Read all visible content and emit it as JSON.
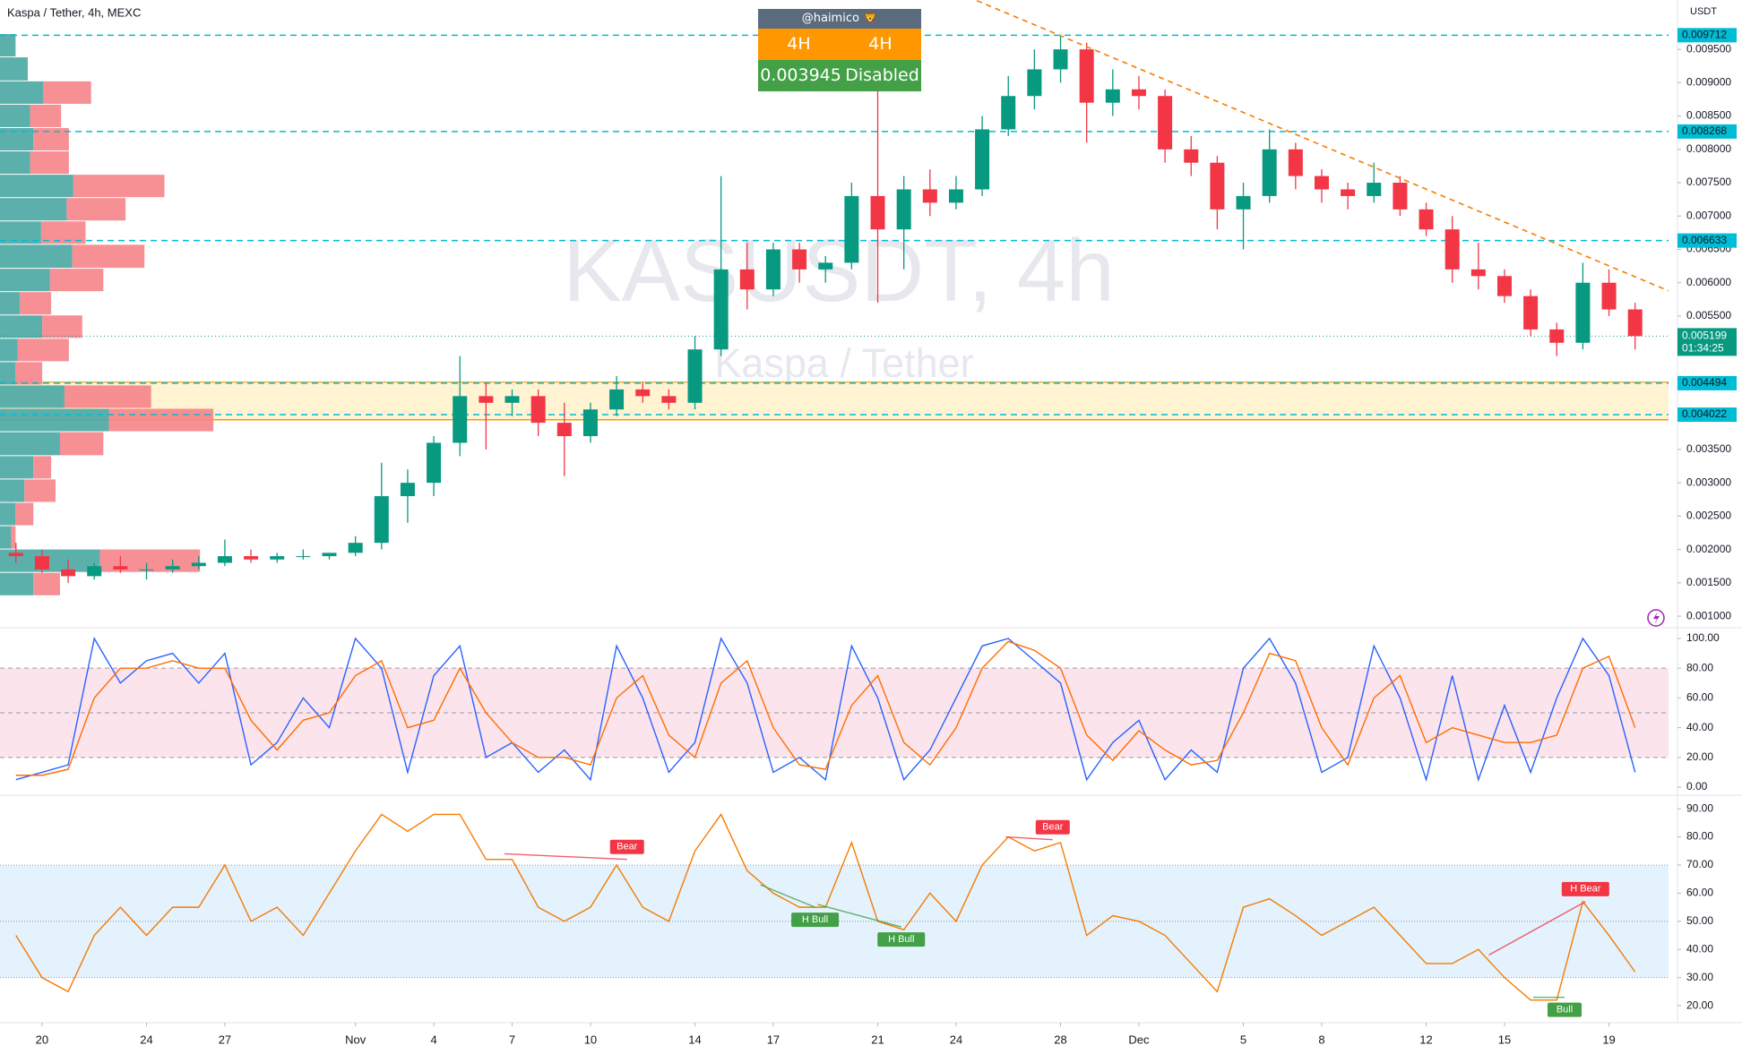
{
  "chart_data": [
    {
      "type": "candlestick",
      "title": "Kaspa / Tether, 4h, MEXC",
      "watermark": "KASUSDT, 4h",
      "watermark_subtitle": "Kaspa / Tether",
      "y_label": "USDT",
      "x": [
        -1,
        0,
        1,
        2,
        3,
        4,
        5,
        6,
        7,
        8,
        9,
        10,
        11,
        12,
        13,
        14,
        15,
        16,
        17,
        18,
        19,
        20,
        21,
        22,
        23,
        24,
        25,
        26,
        27,
        28,
        29,
        30,
        31,
        32,
        33,
        34,
        35,
        36,
        37,
        38,
        39,
        40,
        41,
        42,
        43,
        44,
        45,
        46,
        47,
        48,
        49,
        50,
        51,
        52,
        53,
        54,
        55,
        56,
        57,
        58,
        59,
        60,
        61
      ],
      "open": [
        0.00195,
        0.0019,
        0.0017,
        0.0016,
        0.00175,
        0.0017,
        0.0017,
        0.00175,
        0.0018,
        0.0019,
        0.00185,
        0.0019,
        0.0019,
        0.00195,
        0.0021,
        0.0028,
        0.003,
        0.0036,
        0.0043,
        0.0042,
        0.0043,
        0.0039,
        0.0037,
        0.0041,
        0.0044,
        0.0043,
        0.0042,
        0.005,
        0.0062,
        0.0059,
        0.0065,
        0.0062,
        0.0063,
        0.0073,
        0.0068,
        0.0074,
        0.0072,
        0.0074,
        0.0083,
        0.0088,
        0.0092,
        0.0095,
        0.0087,
        0.0089,
        0.0088,
        0.008,
        0.0078,
        0.0071,
        0.0073,
        0.008,
        0.0076,
        0.0074,
        0.0073,
        0.0075,
        0.0071,
        0.0068,
        0.0062,
        0.0061,
        0.0058,
        0.0053,
        0.0051,
        0.006,
        0.0056
      ],
      "high": [
        0.0021,
        0.002,
        0.00185,
        0.0018,
        0.0019,
        0.0018,
        0.00185,
        0.0019,
        0.00215,
        0.002,
        0.00195,
        0.002,
        0.00195,
        0.0022,
        0.0033,
        0.0032,
        0.0037,
        0.0049,
        0.0045,
        0.0044,
        0.0044,
        0.0042,
        0.0042,
        0.0046,
        0.0045,
        0.0044,
        0.0052,
        0.0076,
        0.0066,
        0.0066,
        0.0066,
        0.0064,
        0.0075,
        0.0089,
        0.0076,
        0.0077,
        0.0076,
        0.0085,
        0.0091,
        0.0095,
        0.0097,
        0.0096,
        0.0092,
        0.0091,
        0.0089,
        0.0082,
        0.0079,
        0.0075,
        0.0083,
        0.0081,
        0.0077,
        0.0075,
        0.0078,
        0.0076,
        0.0072,
        0.007,
        0.0066,
        0.0062,
        0.0059,
        0.0054,
        0.0063,
        0.0062,
        0.0057
      ],
      "low": [
        0.0018,
        0.00165,
        0.0015,
        0.00155,
        0.00165,
        0.00155,
        0.00165,
        0.0017,
        0.00175,
        0.0018,
        0.0018,
        0.00185,
        0.00185,
        0.0019,
        0.002,
        0.0024,
        0.0028,
        0.0034,
        0.0035,
        0.004,
        0.0037,
        0.0031,
        0.0036,
        0.004,
        0.0042,
        0.0041,
        0.0041,
        0.0049,
        0.0056,
        0.0058,
        0.006,
        0.006,
        0.0062,
        0.0057,
        0.0062,
        0.007,
        0.0071,
        0.0073,
        0.0082,
        0.0086,
        0.009,
        0.0081,
        0.0085,
        0.0086,
        0.0078,
        0.0076,
        0.0068,
        0.0065,
        0.0072,
        0.0074,
        0.0072,
        0.0071,
        0.0072,
        0.007,
        0.0067,
        0.006,
        0.0059,
        0.0057,
        0.0052,
        0.0049,
        0.005,
        0.0055,
        0.005
      ],
      "close": [
        0.0019,
        0.0017,
        0.0016,
        0.00175,
        0.0017,
        0.0017,
        0.00175,
        0.0018,
        0.0019,
        0.00185,
        0.0019,
        0.0019,
        0.00195,
        0.0021,
        0.0028,
        0.003,
        0.0036,
        0.0043,
        0.0042,
        0.0043,
        0.0039,
        0.0037,
        0.0041,
        0.0044,
        0.0043,
        0.0042,
        0.005,
        0.0062,
        0.0059,
        0.0065,
        0.0062,
        0.0063,
        0.0073,
        0.0068,
        0.0074,
        0.0072,
        0.0074,
        0.0083,
        0.0088,
        0.0092,
        0.0095,
        0.0087,
        0.0089,
        0.0088,
        0.008,
        0.0078,
        0.0071,
        0.0073,
        0.008,
        0.0076,
        0.0074,
        0.0073,
        0.0075,
        0.0071,
        0.0068,
        0.0062,
        0.0061,
        0.0058,
        0.0053,
        0.0051,
        0.006,
        0.0056,
        0.0052
      ],
      "up_color": "#089981",
      "down_color": "#f23645",
      "xlim": [
        -1.61,
        62.28
      ],
      "xticks": [
        {
          "value": 0,
          "label": "20"
        },
        {
          "value": 4,
          "label": "24"
        },
        {
          "value": 7,
          "label": "27"
        },
        {
          "value": 12,
          "label": "Nov"
        },
        {
          "value": 15,
          "label": "4"
        },
        {
          "value": 18,
          "label": "7"
        },
        {
          "value": 21,
          "label": "10"
        },
        {
          "value": 25,
          "label": "14"
        },
        {
          "value": 28,
          "label": "17"
        },
        {
          "value": 32,
          "label": "21"
        },
        {
          "value": 35,
          "label": "24"
        },
        {
          "value": 39,
          "label": "28"
        },
        {
          "value": 42,
          "label": "Dec"
        },
        {
          "value": 46,
          "label": "5"
        },
        {
          "value": 49,
          "label": "8"
        },
        {
          "value": 53,
          "label": "12"
        },
        {
          "value": 56,
          "label": "15"
        },
        {
          "value": 60,
          "label": "19"
        }
      ],
      "ylim": [
        0.00084,
        0.01024
      ],
      "yticks": [
        {
          "value": 0.001,
          "label": "0.001000"
        },
        {
          "value": 0.0015,
          "label": "0.001500"
        },
        {
          "value": 0.002,
          "label": "0.002000"
        },
        {
          "value": 0.0025,
          "label": "0.002500"
        },
        {
          "value": 0.003,
          "label": "0.003000"
        },
        {
          "value": 0.0035,
          "label": "0.003500"
        },
        {
          "value": 0.0055,
          "label": "0.005500"
        },
        {
          "value": 0.006,
          "label": "0.006000"
        },
        {
          "value": 0.0065,
          "label": "0.006500"
        },
        {
          "value": 0.007,
          "label": "0.007000"
        },
        {
          "value": 0.0075,
          "label": "0.007500"
        },
        {
          "value": 0.008,
          "label": "0.008000"
        },
        {
          "value": 0.0085,
          "label": "0.008500"
        },
        {
          "value": 0.009,
          "label": "0.009000"
        },
        {
          "value": 0.0095,
          "label": "0.009500"
        }
      ],
      "levels": [
        0.009712,
        0.008268,
        0.006633,
        0.004494,
        0.004022
      ],
      "level_color": "#00bcd4",
      "current_price": {
        "value": 0.005199,
        "countdown": "01:34:25",
        "color": "#089981"
      },
      "zone": {
        "top": 0.00451,
        "bottom": 0.003945,
        "color": "#fff3d1",
        "border": "#ff9800"
      },
      "trendline": {
        "x": [
          35.8,
          62.28
        ],
        "y": [
          0.01023,
          0.005879
        ],
        "color": "#f57c00"
      },
      "volume_profile": {
        "bins": [
          0.0013,
          0.00165,
          0.002,
          0.00235,
          0.0027,
          0.00305,
          0.0034,
          0.00376,
          0.00411,
          0.00446,
          0.00481,
          0.00516,
          0.00551,
          0.00586,
          0.00621,
          0.00657,
          0.00692,
          0.00727,
          0.00762,
          0.00797,
          0.00832,
          0.00867,
          0.00902,
          0.00938,
          0.00973
        ],
        "buy": [
          30,
          90,
          10,
          14,
          22,
          30,
          54,
          98,
          58,
          14,
          16,
          38,
          18,
          45,
          65,
          37,
          60,
          66,
          27,
          30,
          27,
          39,
          25,
          14
        ],
        "sell": [
          24,
          90,
          4,
          16,
          28,
          16,
          39,
          94,
          78,
          24,
          46,
          36,
          28,
          48,
          65,
          40,
          53,
          82,
          35,
          32,
          28,
          43,
          0,
          0
        ],
        "buy_color": "#4aa7a3",
        "sell_color": "#f6848a"
      }
    },
    {
      "type": "line",
      "x": [
        -1,
        0,
        1,
        2,
        3,
        4,
        5,
        6,
        7,
        8,
        9,
        10,
        11,
        12,
        13,
        14,
        15,
        16,
        17,
        18,
        19,
        20,
        21,
        22,
        23,
        24,
        25,
        26,
        27,
        28,
        29,
        30,
        31,
        32,
        33,
        34,
        35,
        36,
        37,
        38,
        39,
        40,
        41,
        42,
        43,
        44,
        45,
        46,
        47,
        48,
        49,
        50,
        51,
        52,
        53,
        54,
        55,
        56,
        57,
        58,
        59,
        60,
        61
      ],
      "series": [
        {
          "color": "#2962ff",
          "values": [
            5,
            10,
            15,
            100,
            70,
            85,
            90,
            70,
            90,
            15,
            30,
            60,
            40,
            100,
            80,
            10,
            75,
            95,
            20,
            30,
            10,
            25,
            5,
            95,
            60,
            10,
            30,
            100,
            70,
            10,
            20,
            5,
            95,
            60,
            5,
            25,
            60,
            95,
            100,
            85,
            70,
            5,
            30,
            45,
            5,
            25,
            10,
            80,
            100,
            70,
            10,
            20,
            95,
            60,
            5,
            75,
            5,
            55,
            10,
            60,
            100,
            75,
            10
          ]
        },
        {
          "color": "#ff6d00",
          "values": [
            8,
            8,
            12,
            60,
            80,
            80,
            85,
            80,
            80,
            45,
            25,
            45,
            50,
            75,
            85,
            40,
            45,
            80,
            50,
            30,
            20,
            20,
            15,
            60,
            75,
            35,
            20,
            70,
            85,
            40,
            15,
            12,
            55,
            75,
            30,
            15,
            40,
            80,
            98,
            92,
            80,
            35,
            18,
            38,
            25,
            15,
            18,
            50,
            90,
            85,
            40,
            15,
            60,
            75,
            30,
            40,
            35,
            30,
            30,
            35,
            80,
            88,
            40
          ]
        }
      ],
      "ylim": [
        -4.8,
        106
      ],
      "yticks": [
        {
          "value": 0,
          "label": "0.00"
        },
        {
          "value": 20,
          "label": "20.00"
        },
        {
          "value": 40,
          "label": "40.00"
        },
        {
          "value": 60,
          "label": "60.00"
        },
        {
          "value": 80,
          "label": "80.00"
        },
        {
          "value": 100,
          "label": "100.00"
        }
      ],
      "bands": [
        20,
        50,
        80
      ],
      "band_fill": "#fce4ec"
    },
    {
      "type": "line",
      "x": [
        -1,
        0,
        1,
        2,
        3,
        4,
        5,
        6,
        7,
        8,
        9,
        10,
        11,
        12,
        13,
        14,
        15,
        16,
        17,
        18,
        19,
        20,
        21,
        22,
        23,
        24,
        25,
        26,
        27,
        28,
        29,
        30,
        31,
        32,
        33,
        34,
        35,
        36,
        37,
        38,
        39,
        40,
        41,
        42,
        43,
        44,
        45,
        46,
        47,
        48,
        49,
        50,
        51,
        52,
        53,
        54,
        55,
        56,
        57,
        58,
        59,
        60,
        61
      ],
      "series": [
        {
          "color": "#f57c00",
          "values": [
            45,
            30,
            25,
            45,
            55,
            45,
            55,
            55,
            70,
            50,
            55,
            45,
            60,
            75,
            88,
            82,
            88,
            88,
            72,
            72,
            55,
            50,
            55,
            70,
            55,
            50,
            75,
            88,
            68,
            60,
            55,
            55,
            78,
            50,
            47,
            60,
            50,
            70,
            80,
            75,
            78,
            45,
            52,
            50,
            45,
            35,
            25,
            55,
            58,
            52,
            45,
            50,
            55,
            45,
            35,
            35,
            40,
            30,
            22,
            22,
            57,
            45,
            32
          ]
        }
      ],
      "ylim": [
        14.3,
        94.5
      ],
      "yticks": [
        {
          "value": 20,
          "label": "20.00"
        },
        {
          "value": 30,
          "label": "30.00"
        },
        {
          "value": 40,
          "label": "40.00"
        },
        {
          "value": 50,
          "label": "50.00"
        },
        {
          "value": 60,
          "label": "60.00"
        },
        {
          "value": 70,
          "label": "70.00"
        },
        {
          "value": 80,
          "label": "80.00"
        },
        {
          "value": 90,
          "label": "90.00"
        }
      ],
      "bands": [
        30,
        50,
        70
      ],
      "band_fill": "#e3f2fd",
      "divergences": [
        {
          "label": "Bear",
          "from": [
            17.7,
            74
          ],
          "to": [
            22.4,
            72
          ],
          "color": "#f23645"
        },
        {
          "label": "H Bull",
          "from": [
            27.5,
            63
          ],
          "to": [
            29.6,
            55
          ],
          "color": "#43a047"
        },
        {
          "label": "H Bull",
          "from": [
            29.7,
            56
          ],
          "to": [
            32.9,
            48
          ],
          "color": "#43a047"
        },
        {
          "label": "Bear",
          "from": [
            36.9,
            80
          ],
          "to": [
            38.7,
            79
          ],
          "color": "#f23645"
        },
        {
          "label": "H Bear",
          "from": [
            55.4,
            38
          ],
          "to": [
            59.1,
            57
          ],
          "color": "#f23645"
        },
        {
          "label": "Bull",
          "from": [
            57.1,
            23
          ],
          "to": [
            58.3,
            23
          ],
          "color": "#43a047"
        }
      ]
    }
  ],
  "info_box": {
    "user": "@haimico 🦁",
    "timeframes": [
      "4H",
      "4H"
    ],
    "value": 0.003945,
    "status": "Disabled"
  }
}
